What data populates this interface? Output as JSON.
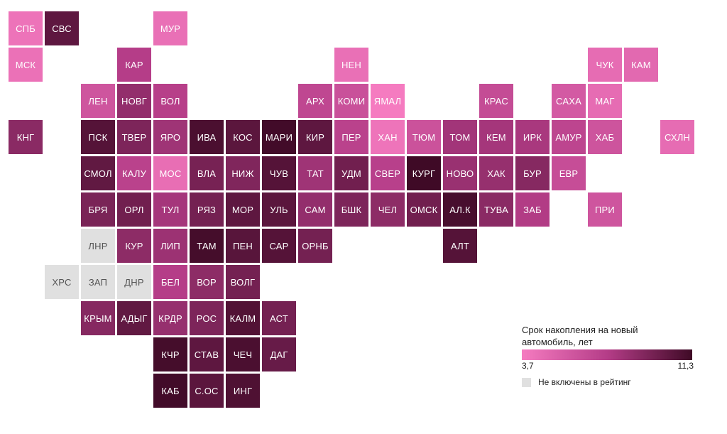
{
  "legend": {
    "title": "Срок накопления на новый автомобиль, лет",
    "min_label": "3,7",
    "max_label": "11,3",
    "min_value": 3.7,
    "max_value": 11.3,
    "na_label": "Не включены в рейтинг"
  },
  "colors": {
    "low": "#f57bc0",
    "mid": "#b53d88",
    "high": "#3f0a26",
    "na": "#e0e0e0"
  },
  "regions": [
    {
      "label": "СПБ",
      "row": 0,
      "col": 0,
      "value": 4.2
    },
    {
      "label": "СВС",
      "row": 0,
      "col": 1,
      "value": 10.3
    },
    {
      "label": "МУР",
      "row": 0,
      "col": 4,
      "value": 4.4
    },
    {
      "label": "МСК",
      "row": 1,
      "col": 0,
      "value": 4.3
    },
    {
      "label": "КАР",
      "row": 1,
      "col": 3,
      "value": 7.5
    },
    {
      "label": "НЕН",
      "row": 1,
      "col": 9,
      "value": 4.4
    },
    {
      "label": "ЧУК",
      "row": 1,
      "col": 16,
      "value": 4.6
    },
    {
      "label": "КАМ",
      "row": 1,
      "col": 17,
      "value": 4.8
    },
    {
      "label": "ЛЕН",
      "row": 2,
      "col": 2,
      "value": 6.0
    },
    {
      "label": "НОВГ",
      "row": 2,
      "col": 3,
      "value": 8.6
    },
    {
      "label": "ВОЛ",
      "row": 2,
      "col": 4,
      "value": 7.4
    },
    {
      "label": "АРХ",
      "row": 2,
      "col": 8,
      "value": 6.9
    },
    {
      "label": "КОМИ",
      "row": 2,
      "col": 9,
      "value": 6.3
    },
    {
      "label": "ЯМАЛ",
      "row": 2,
      "col": 10,
      "value": 3.7
    },
    {
      "label": "КРАС",
      "row": 2,
      "col": 13,
      "value": 6.6
    },
    {
      "label": "САХА",
      "row": 2,
      "col": 15,
      "value": 5.7
    },
    {
      "label": "МАГ",
      "row": 2,
      "col": 16,
      "value": 4.6
    },
    {
      "label": "КНГ",
      "row": 3,
      "col": 0,
      "value": 8.9
    },
    {
      "label": "ПСК",
      "row": 3,
      "col": 2,
      "value": 10.6
    },
    {
      "label": "ТВЕР",
      "row": 3,
      "col": 3,
      "value": 9.3
    },
    {
      "label": "ЯРО",
      "row": 3,
      "col": 4,
      "value": 8.2
    },
    {
      "label": "ИВА",
      "row": 3,
      "col": 5,
      "value": 10.9
    },
    {
      "label": "КОС",
      "row": 3,
      "col": 6,
      "value": 10.4
    },
    {
      "label": "МАРИ",
      "row": 3,
      "col": 7,
      "value": 11.2
    },
    {
      "label": "КИР",
      "row": 3,
      "col": 8,
      "value": 10.3
    },
    {
      "label": "ПЕР",
      "row": 3,
      "col": 9,
      "value": 7.2
    },
    {
      "label": "ХАН",
      "row": 3,
      "col": 10,
      "value": 4.1
    },
    {
      "label": "ТЮМ",
      "row": 3,
      "col": 11,
      "value": 6.2
    },
    {
      "label": "ТОМ",
      "row": 3,
      "col": 12,
      "value": 8.1
    },
    {
      "label": "КЕМ",
      "row": 3,
      "col": 13,
      "value": 8.0
    },
    {
      "label": "ИРК",
      "row": 3,
      "col": 14,
      "value": 7.9
    },
    {
      "label": "АМУР",
      "row": 3,
      "col": 15,
      "value": 7.0
    },
    {
      "label": "ХАБ",
      "row": 3,
      "col": 16,
      "value": 6.1
    },
    {
      "label": "СХЛН",
      "row": 3,
      "col": 18,
      "value": 4.6
    },
    {
      "label": "СМОЛ",
      "row": 4,
      "col": 2,
      "value": 10.2
    },
    {
      "label": "КАЛУ",
      "row": 4,
      "col": 3,
      "value": 7.2
    },
    {
      "label": "МОС",
      "row": 4,
      "col": 4,
      "value": 4.5
    },
    {
      "label": "ВЛА",
      "row": 4,
      "col": 5,
      "value": 9.5
    },
    {
      "label": "НИЖ",
      "row": 4,
      "col": 6,
      "value": 9.2
    },
    {
      "label": "ЧУВ",
      "row": 4,
      "col": 7,
      "value": 10.6
    },
    {
      "label": "ТАТ",
      "row": 4,
      "col": 8,
      "value": 8.2
    },
    {
      "label": "УДМ",
      "row": 4,
      "col": 9,
      "value": 9.7
    },
    {
      "label": "СВЕР",
      "row": 4,
      "col": 10,
      "value": 7.3
    },
    {
      "label": "КУРГ",
      "row": 4,
      "col": 11,
      "value": 11.3
    },
    {
      "label": "НОВО",
      "row": 4,
      "col": 12,
      "value": 8.4
    },
    {
      "label": "ХАК",
      "row": 4,
      "col": 13,
      "value": 8.5
    },
    {
      "label": "БУР",
      "row": 4,
      "col": 14,
      "value": 9.0
    },
    {
      "label": "ЕВР",
      "row": 4,
      "col": 15,
      "value": 6.5
    },
    {
      "label": "БРЯ",
      "row": 5,
      "col": 2,
      "value": 9.4
    },
    {
      "label": "ОРЛ",
      "row": 5,
      "col": 3,
      "value": 9.7
    },
    {
      "label": "ТУЛ",
      "row": 5,
      "col": 4,
      "value": 8.0
    },
    {
      "label": "РЯЗ",
      "row": 5,
      "col": 5,
      "value": 9.6
    },
    {
      "label": "МОР",
      "row": 5,
      "col": 6,
      "value": 10.3
    },
    {
      "label": "УЛЬ",
      "row": 5,
      "col": 7,
      "value": 10.4
    },
    {
      "label": "САМ",
      "row": 5,
      "col": 8,
      "value": 8.6
    },
    {
      "label": "БШК",
      "row": 5,
      "col": 9,
      "value": 9.3
    },
    {
      "label": "ЧЕЛ",
      "row": 5,
      "col": 10,
      "value": 8.8
    },
    {
      "label": "ОМСК",
      "row": 5,
      "col": 11,
      "value": 9.7
    },
    {
      "label": "АЛ.К",
      "row": 5,
      "col": 12,
      "value": 11.0
    },
    {
      "label": "ТУВА",
      "row": 5,
      "col": 13,
      "value": 8.9
    },
    {
      "label": "ЗАБ",
      "row": 5,
      "col": 14,
      "value": 7.6
    },
    {
      "label": "ПРИ",
      "row": 5,
      "col": 16,
      "value": 6.0
    },
    {
      "label": "ЛНР",
      "row": 6,
      "col": 2,
      "value": null
    },
    {
      "label": "КУР",
      "row": 6,
      "col": 3,
      "value": 8.8
    },
    {
      "label": "ЛИП",
      "row": 6,
      "col": 4,
      "value": 8.3
    },
    {
      "label": "ТАМ",
      "row": 6,
      "col": 5,
      "value": 11.1
    },
    {
      "label": "ПЕН",
      "row": 6,
      "col": 6,
      "value": 10.5
    },
    {
      "label": "САР",
      "row": 6,
      "col": 7,
      "value": 10.6
    },
    {
      "label": "ОРНБ",
      "row": 6,
      "col": 8,
      "value": 9.6
    },
    {
      "label": "АЛТ",
      "row": 6,
      "col": 12,
      "value": 10.6
    },
    {
      "label": "ХРС",
      "row": 7,
      "col": 1,
      "value": null
    },
    {
      "label": "ЗАП",
      "row": 7,
      "col": 2,
      "value": null
    },
    {
      "label": "ДНР",
      "row": 7,
      "col": 3,
      "value": null
    },
    {
      "label": "БЕЛ",
      "row": 7,
      "col": 4,
      "value": 7.5
    },
    {
      "label": "ВОР",
      "row": 7,
      "col": 5,
      "value": 8.8
    },
    {
      "label": "ВОЛГ",
      "row": 7,
      "col": 6,
      "value": 9.6
    },
    {
      "label": "КРЫМ",
      "row": 8,
      "col": 2,
      "value": 9.0
    },
    {
      "label": "АДЫГ",
      "row": 8,
      "col": 3,
      "value": 10.2
    },
    {
      "label": "КРДР",
      "row": 8,
      "col": 4,
      "value": 8.5
    },
    {
      "label": "РОС",
      "row": 8,
      "col": 5,
      "value": 9.3
    },
    {
      "label": "КАЛМ",
      "row": 8,
      "col": 6,
      "value": 10.7
    },
    {
      "label": "АСТ",
      "row": 8,
      "col": 7,
      "value": 9.6
    },
    {
      "label": "КЧР",
      "row": 9,
      "col": 4,
      "value": 11.1
    },
    {
      "label": "СТАВ",
      "row": 9,
      "col": 5,
      "value": 10.3
    },
    {
      "label": "ЧЕЧ",
      "row": 9,
      "col": 6,
      "value": 10.9
    },
    {
      "label": "ДАГ",
      "row": 9,
      "col": 7,
      "value": 10.0
    },
    {
      "label": "КАБ",
      "row": 10,
      "col": 4,
      "value": 11.2
    },
    {
      "label": "С.ОС",
      "row": 10,
      "col": 5,
      "value": 10.4
    },
    {
      "label": "ИНГ",
      "row": 10,
      "col": 6,
      "value": 10.8
    }
  ]
}
